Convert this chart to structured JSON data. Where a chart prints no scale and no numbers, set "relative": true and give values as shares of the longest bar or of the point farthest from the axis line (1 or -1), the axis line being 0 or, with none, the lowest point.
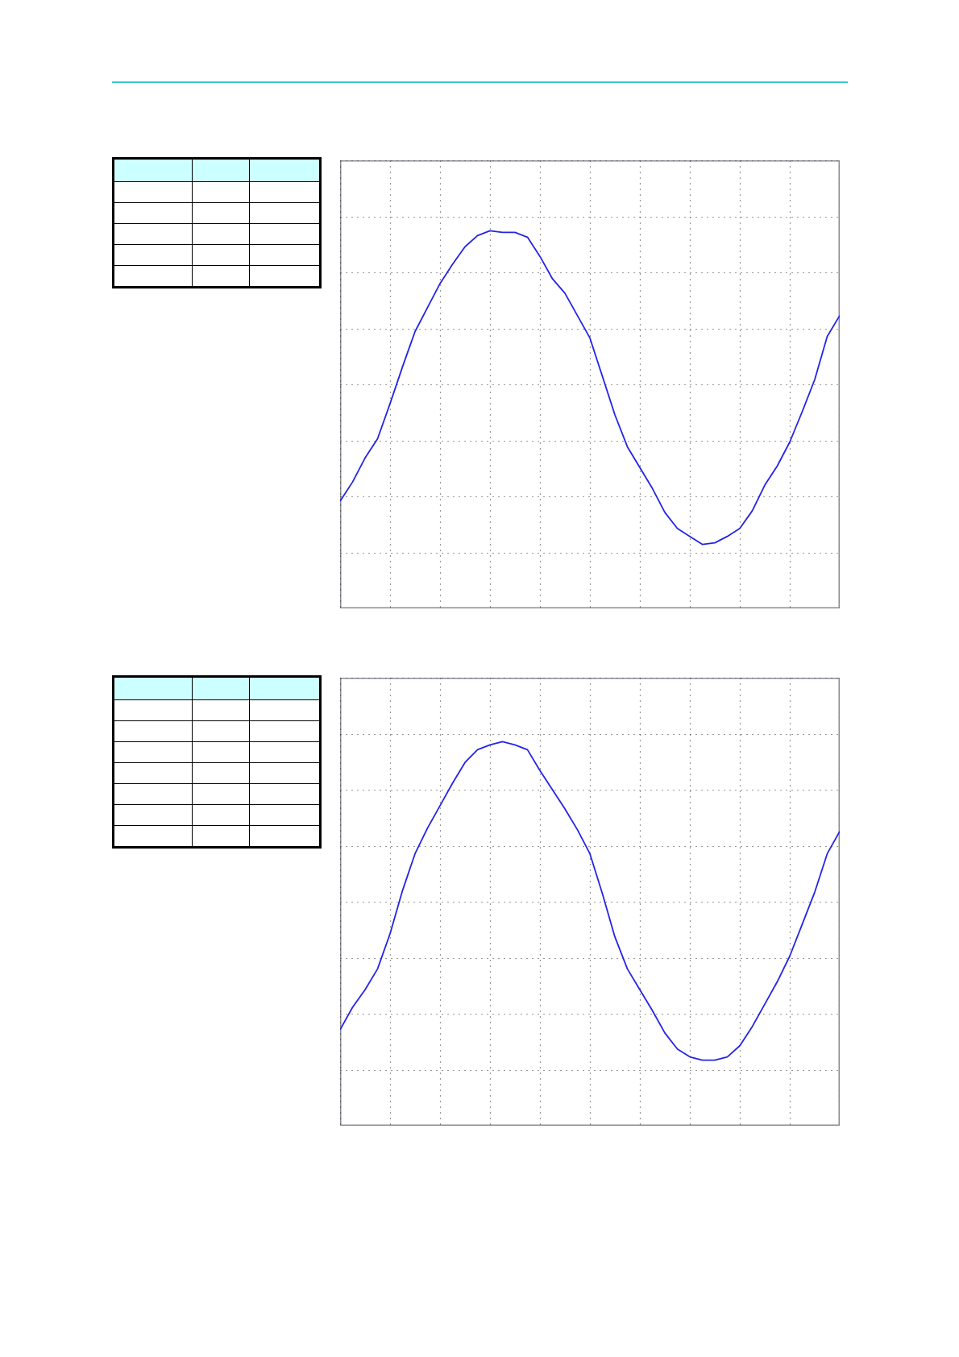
{
  "chart_data": [
    {
      "type": "line",
      "relative": true,
      "grid": true,
      "line_style": "solid",
      "categories": [
        null,
        null,
        null,
        null,
        null,
        null,
        null,
        null,
        null,
        null,
        null,
        null,
        null,
        null,
        null,
        null,
        null,
        null,
        null,
        null,
        null,
        null,
        null,
        null,
        null,
        null,
        null,
        null,
        null,
        null,
        null,
        null,
        null,
        null,
        null,
        null,
        null,
        null,
        null,
        null,
        null
      ],
      "series": [
        {
          "color": "#2424e6",
          "values": [
            -0.73,
            -0.61,
            -0.46,
            -0.34,
            -0.12,
            0.11,
            0.33,
            0.48,
            0.63,
            0.75,
            0.86,
            0.93,
            0.96,
            0.95,
            0.95,
            0.92,
            0.8,
            0.66,
            0.57,
            0.43,
            0.29,
            0.05,
            -0.19,
            -0.39,
            -0.52,
            -0.65,
            -0.8,
            -0.9,
            -0.95,
            -1,
            -0.99,
            -0.95,
            -0.9,
            -0.79,
            -0.63,
            -0.51,
            -0.36,
            -0.17,
            0.03,
            0.3,
            0.43
          ]
        }
      ]
    },
    {
      "type": "line",
      "relative": true,
      "grid": true,
      "line_style": "solid",
      "categories": [
        null,
        null,
        null,
        null,
        null,
        null,
        null,
        null,
        null,
        null,
        null,
        null,
        null,
        null,
        null,
        null,
        null,
        null,
        null,
        null,
        null,
        null,
        null,
        null,
        null,
        null,
        null,
        null,
        null,
        null,
        null,
        null,
        null,
        null,
        null,
        null,
        null,
        null,
        null,
        null,
        null
      ],
      "series": [
        {
          "color": "#2424e6",
          "values": [
            -0.8,
            -0.66,
            -0.55,
            -0.42,
            -0.2,
            0.07,
            0.3,
            0.46,
            0.6,
            0.74,
            0.87,
            0.95,
            0.98,
            1,
            0.98,
            0.95,
            0.82,
            0.7,
            0.58,
            0.45,
            0.3,
            0.05,
            -0.22,
            -0.42,
            -0.55,
            -0.68,
            -0.82,
            -0.92,
            -0.97,
            -0.99,
            -0.99,
            -0.97,
            -0.9,
            -0.78,
            -0.64,
            -0.5,
            -0.34,
            -0.14,
            0.06,
            0.3,
            0.44
          ]
        }
      ]
    }
  ]
}
